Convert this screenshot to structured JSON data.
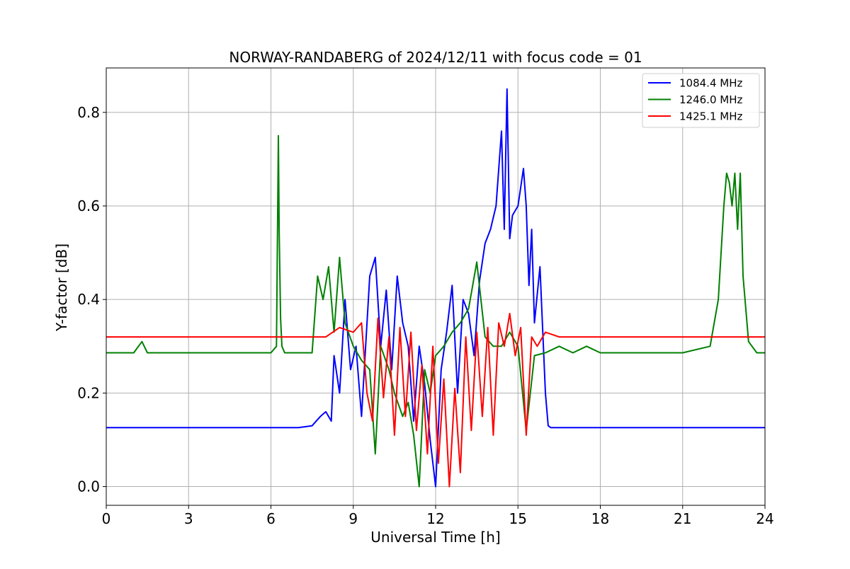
{
  "chart_data": {
    "type": "line",
    "title": "NORWAY-RANDABERG of 2024/12/11 with focus code = 01",
    "xlabel": "Universal Time [h]",
    "ylabel": "Y-factor [dB]",
    "xlim": [
      0,
      24
    ],
    "ylim": [
      -0.04,
      0.895
    ],
    "x_ticks": [
      0,
      3,
      6,
      9,
      12,
      15,
      18,
      21,
      24
    ],
    "y_ticks": [
      0.0,
      0.2,
      0.4,
      0.6,
      0.8
    ],
    "y_tick_labels": [
      "0.0",
      "0.2",
      "0.4",
      "0.6",
      "0.8"
    ],
    "grid": true,
    "legend_position": "top-right",
    "series": [
      {
        "name": "1084.4 MHz",
        "color": "#0000ff",
        "baseline": 0.126,
        "x": [
          0.0,
          0.5,
          1.0,
          2.0,
          3.0,
          4.0,
          5.0,
          6.0,
          7.0,
          7.5,
          7.8,
          8.0,
          8.2,
          8.3,
          8.5,
          8.7,
          8.9,
          9.1,
          9.3,
          9.6,
          9.8,
          10.0,
          10.2,
          10.4,
          10.6,
          10.8,
          11.0,
          11.2,
          11.4,
          11.6,
          11.8,
          12.0,
          12.2,
          12.4,
          12.6,
          12.8,
          13.0,
          13.2,
          13.4,
          13.6,
          13.8,
          14.0,
          14.2,
          14.4,
          14.5,
          14.6,
          14.7,
          14.8,
          15.0,
          15.2,
          15.3,
          15.4,
          15.5,
          15.6,
          15.8,
          16.0,
          16.1,
          16.2,
          16.5,
          17.0,
          18.0,
          19.0,
          20.0,
          21.0,
          22.0,
          23.0,
          24.0
        ],
        "y": [
          0.126,
          0.126,
          0.126,
          0.126,
          0.126,
          0.126,
          0.126,
          0.126,
          0.126,
          0.13,
          0.15,
          0.16,
          0.14,
          0.28,
          0.2,
          0.4,
          0.25,
          0.3,
          0.15,
          0.45,
          0.49,
          0.3,
          0.42,
          0.25,
          0.45,
          0.35,
          0.3,
          0.14,
          0.3,
          0.22,
          0.1,
          0.0,
          0.25,
          0.33,
          0.43,
          0.2,
          0.4,
          0.37,
          0.28,
          0.44,
          0.52,
          0.55,
          0.6,
          0.76,
          0.55,
          0.85,
          0.53,
          0.58,
          0.6,
          0.68,
          0.6,
          0.43,
          0.55,
          0.35,
          0.47,
          0.2,
          0.13,
          0.126,
          0.126,
          0.126,
          0.126,
          0.126,
          0.126,
          0.126,
          0.126,
          0.126,
          0.126
        ]
      },
      {
        "name": "1246.0 MHz",
        "color": "#008000",
        "baseline": 0.286,
        "x": [
          0.0,
          1.0,
          1.3,
          1.5,
          2.0,
          3.0,
          4.0,
          5.0,
          6.0,
          6.2,
          6.27,
          6.3,
          6.35,
          6.4,
          6.5,
          7.0,
          7.5,
          7.7,
          7.9,
          8.1,
          8.3,
          8.5,
          8.7,
          9.0,
          9.3,
          9.6,
          9.8,
          10.0,
          10.3,
          10.5,
          10.8,
          11.0,
          11.2,
          11.4,
          11.6,
          11.8,
          12.0,
          12.3,
          12.6,
          12.9,
          13.2,
          13.5,
          13.8,
          14.1,
          14.4,
          14.7,
          15.0,
          15.3,
          15.6,
          16.0,
          16.5,
          17.0,
          17.5,
          18.0,
          19.0,
          20.0,
          21.0,
          22.0,
          22.3,
          22.5,
          22.6,
          22.7,
          22.8,
          22.9,
          23.0,
          23.1,
          23.2,
          23.4,
          23.7,
          24.0
        ],
        "y": [
          0.286,
          0.286,
          0.31,
          0.286,
          0.286,
          0.286,
          0.286,
          0.286,
          0.286,
          0.3,
          0.75,
          0.55,
          0.36,
          0.3,
          0.286,
          0.286,
          0.286,
          0.45,
          0.4,
          0.47,
          0.33,
          0.49,
          0.35,
          0.3,
          0.27,
          0.25,
          0.07,
          0.3,
          0.25,
          0.2,
          0.15,
          0.18,
          0.11,
          0.0,
          0.25,
          0.2,
          0.28,
          0.3,
          0.33,
          0.35,
          0.38,
          0.48,
          0.32,
          0.3,
          0.3,
          0.33,
          0.3,
          0.12,
          0.28,
          0.286,
          0.3,
          0.286,
          0.3,
          0.286,
          0.286,
          0.286,
          0.286,
          0.3,
          0.4,
          0.6,
          0.67,
          0.65,
          0.6,
          0.67,
          0.55,
          0.67,
          0.45,
          0.31,
          0.286,
          0.286
        ]
      },
      {
        "name": "1425.1 MHz",
        "color": "#ff0000",
        "baseline": 0.32,
        "x": [
          0.0,
          1.0,
          2.0,
          3.0,
          4.0,
          5.0,
          6.0,
          7.0,
          7.5,
          8.0,
          8.5,
          9.0,
          9.3,
          9.5,
          9.7,
          9.9,
          10.1,
          10.3,
          10.5,
          10.7,
          10.9,
          11.1,
          11.3,
          11.5,
          11.7,
          11.9,
          12.1,
          12.3,
          12.5,
          12.7,
          12.9,
          13.1,
          13.3,
          13.5,
          13.7,
          13.9,
          14.1,
          14.3,
          14.5,
          14.7,
          14.9,
          15.1,
          15.3,
          15.5,
          15.7,
          16.0,
          16.5,
          17.0,
          18.0,
          19.0,
          20.0,
          21.0,
          22.0,
          23.0,
          24.0
        ],
        "y": [
          0.32,
          0.32,
          0.32,
          0.32,
          0.32,
          0.32,
          0.32,
          0.32,
          0.32,
          0.32,
          0.34,
          0.33,
          0.35,
          0.2,
          0.14,
          0.36,
          0.19,
          0.32,
          0.11,
          0.34,
          0.15,
          0.33,
          0.12,
          0.26,
          0.07,
          0.3,
          0.05,
          0.23,
          0.0,
          0.21,
          0.03,
          0.32,
          0.12,
          0.33,
          0.15,
          0.34,
          0.11,
          0.35,
          0.3,
          0.37,
          0.28,
          0.34,
          0.11,
          0.32,
          0.3,
          0.33,
          0.32,
          0.32,
          0.32,
          0.32,
          0.32,
          0.32,
          0.32,
          0.32,
          0.32
        ]
      }
    ]
  }
}
